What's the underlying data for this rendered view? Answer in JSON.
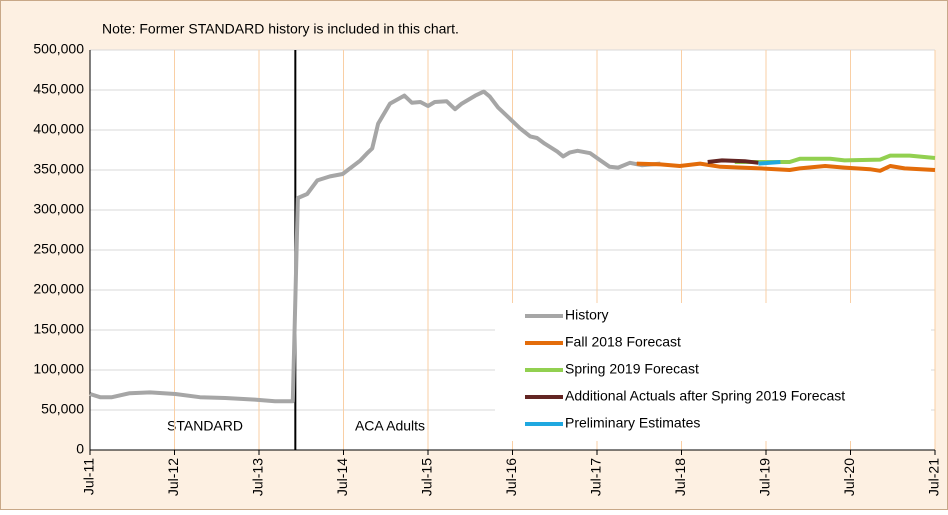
{
  "chart_data": {
    "type": "line",
    "annotations": {
      "note": "Note: Former STANDARD history is included in this chart.",
      "left": "STANDARD",
      "right": "ACA Adults"
    },
    "divider_x": 2013.93,
    "xlim": [
      2011.5,
      2021.5
    ],
    "xticks": [
      {
        "value": 2011.5,
        "label": "Jul-11"
      },
      {
        "value": 2012.5,
        "label": "Jul-12"
      },
      {
        "value": 2013.5,
        "label": "Jul-13"
      },
      {
        "value": 2014.5,
        "label": "Jul-14"
      },
      {
        "value": 2015.5,
        "label": "Jul-15"
      },
      {
        "value": 2016.5,
        "label": "Jul-16"
      },
      {
        "value": 2017.5,
        "label": "Jul-17"
      },
      {
        "value": 2018.5,
        "label": "Jul-18"
      },
      {
        "value": 2019.5,
        "label": "Jul-19"
      },
      {
        "value": 2020.5,
        "label": "Jul-20"
      },
      {
        "value": 2021.5,
        "label": "Jul-21"
      }
    ],
    "ylim": [
      0,
      500000
    ],
    "yticks": [
      0,
      {
        "value": 50000,
        "label": "50,000"
      },
      {
        "value": 100000,
        "label": "100,000"
      },
      {
        "value": 150000,
        "label": "150,000"
      },
      {
        "value": 200000,
        "label": "200,000"
      },
      {
        "value": 250000,
        "label": "250,000"
      },
      {
        "value": 300000,
        "label": "300,000"
      },
      {
        "value": 350000,
        "label": "350,000"
      },
      {
        "value": 400000,
        "label": "400,000"
      },
      {
        "value": 450000,
        "label": "450,000"
      },
      {
        "value": 500000,
        "label": "500,000"
      }
    ],
    "grid": true,
    "series": [
      {
        "name": "History",
        "color": "#a6a6a6",
        "x": [
          2011.5,
          2011.62,
          2011.76,
          2011.97,
          2012.21,
          2012.51,
          2012.8,
          2013.1,
          2013.45,
          2013.69,
          2013.87,
          2013.9,
          2013.96,
          2014.07,
          2014.19,
          2014.34,
          2014.49,
          2014.7,
          2014.79,
          2014.84,
          2014.91,
          2015.05,
          2015.22,
          2015.31,
          2015.41,
          2015.5,
          2015.58,
          2015.72,
          2015.82,
          2015.9,
          2016.06,
          2016.16,
          2016.23,
          2016.33,
          2016.43,
          2016.59,
          2016.71,
          2016.79,
          2016.88,
          2017.03,
          2017.1,
          2017.18,
          2017.27,
          2017.42,
          2017.54,
          2017.65,
          2017.75,
          2017.89,
          2018.03,
          2018.25
        ],
        "values": [
          70000,
          66000,
          66000,
          71000,
          72000,
          70000,
          66000,
          65000,
          63000,
          61000,
          61000,
          61000,
          315000,
          320000,
          337000,
          342000,
          345000,
          362000,
          372000,
          377000,
          408000,
          433000,
          443000,
          434000,
          435000,
          430000,
          435000,
          436000,
          426000,
          433000,
          443000,
          448000,
          442000,
          428000,
          418000,
          402000,
          392000,
          390000,
          383000,
          373000,
          367000,
          372000,
          374000,
          371000,
          362000,
          354000,
          353000,
          359000,
          356000,
          358000
        ]
      },
      {
        "name": "Fall 2018 Forecast",
        "color": "#e36c0a",
        "x": [
          2017.97,
          2018.25,
          2018.48,
          2018.72,
          2018.96,
          2019.43,
          2019.78,
          2019.9,
          2020.2,
          2020.43,
          2020.73,
          2020.85,
          2020.97,
          2021.14,
          2021.5
        ],
        "values": [
          358000,
          357000,
          355000,
          358000,
          354000,
          352000,
          350000,
          352000,
          355000,
          353000,
          351000,
          349000,
          355000,
          352000,
          350000
        ]
      },
      {
        "name": "Spring 2019 Forecast",
        "color": "#92d050",
        "x": [
          2019.13,
          2019.43,
          2019.78,
          2019.9,
          2020.26,
          2020.43,
          2020.85,
          2020.97,
          2021.2,
          2021.5
        ],
        "values": [
          360000,
          360000,
          360000,
          364000,
          364000,
          362000,
          363000,
          368000,
          368000,
          365000
        ]
      },
      {
        "name": "Additional Actuals after Spring 2019 Forecast",
        "color": "#632523",
        "x": [
          2018.81,
          2018.98,
          2019.25,
          2019.41
        ],
        "values": [
          360000,
          362000,
          361000,
          359000
        ]
      },
      {
        "name": "Preliminary Estimates",
        "color": "#1fa8e0",
        "x": [
          2019.41,
          2019.67
        ],
        "values": [
          358000,
          360000
        ]
      }
    ]
  }
}
